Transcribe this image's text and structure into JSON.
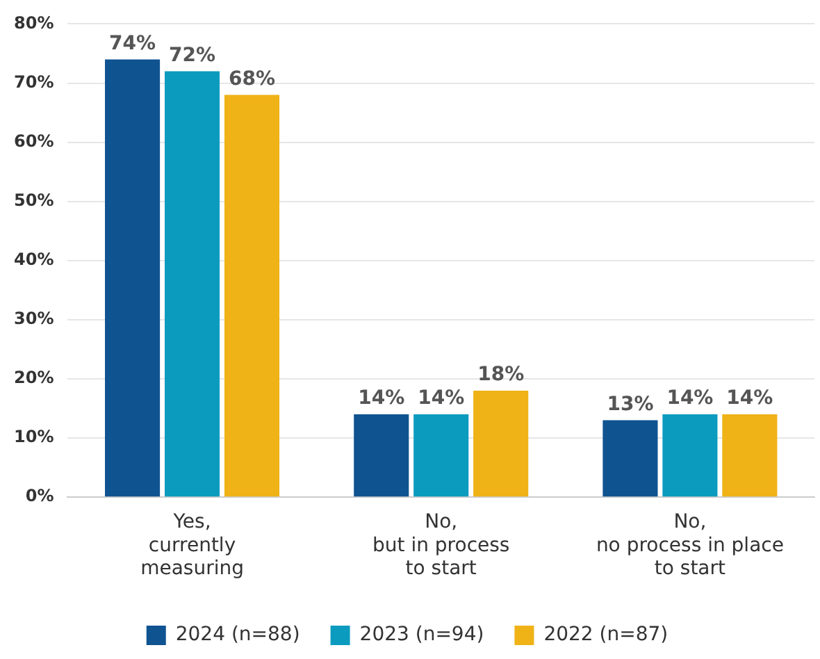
{
  "chart_data": {
    "type": "bar",
    "categories": [
      "Yes,\ncurrently\nmeasuring",
      "No,\nbut in process\nto start",
      "No,\nno process in place\nto start"
    ],
    "series": [
      {
        "name": "2024 (n=88)",
        "color": "#0f5391",
        "values": [
          74,
          14,
          13
        ],
        "value_labels": [
          "74%",
          "14%",
          "13%"
        ]
      },
      {
        "name": "2023 (n=94)",
        "color": "#0b9bbf",
        "values": [
          72,
          14,
          14
        ],
        "value_labels": [
          "72%",
          "14%",
          "14%"
        ]
      },
      {
        "name": "2022 (n=87)",
        "color": "#efb217",
        "values": [
          68,
          18,
          14
        ],
        "value_labels": [
          "68%",
          "18%",
          "14%"
        ]
      }
    ],
    "ylim": [
      0,
      80
    ],
    "yticks": [
      {
        "value": 0,
        "label": "0%"
      },
      {
        "value": 10,
        "label": "10%"
      },
      {
        "value": 20,
        "label": "20%"
      },
      {
        "value": 30,
        "label": "30%"
      },
      {
        "value": 40,
        "label": "40%"
      },
      {
        "value": 50,
        "label": "50%"
      },
      {
        "value": 60,
        "label": "60%"
      },
      {
        "value": 70,
        "label": "70%"
      },
      {
        "value": 80,
        "label": "80%"
      }
    ],
    "grid": "y",
    "legend": "bottom"
  }
}
